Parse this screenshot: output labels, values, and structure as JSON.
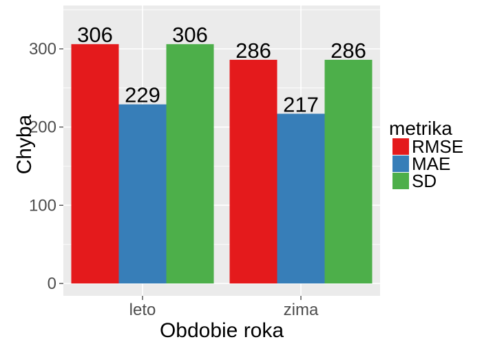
{
  "chart_data": {
    "type": "bar",
    "title": "",
    "xlabel": "Obdobie roka",
    "ylabel": "Chyba",
    "categories": [
      "leto",
      "zima"
    ],
    "series": [
      {
        "name": "RMSE",
        "values": [
          306,
          286
        ],
        "color": "#E41A1C"
      },
      {
        "name": "MAE",
        "values": [
          229,
          217
        ],
        "color": "#377EB8"
      },
      {
        "name": "SD",
        "values": [
          306,
          286
        ],
        "color": "#4DAF4A"
      }
    ],
    "ylim": [
      0,
      350
    ],
    "yticks": [
      0,
      100,
      200,
      300
    ],
    "grid": true,
    "legend": {
      "title": "metrika",
      "placement": "right"
    }
  },
  "colors": {
    "panel_background": "#EBEBEB",
    "grid_major": "#FFFFFF",
    "tick_text": "#4D4D4D"
  }
}
